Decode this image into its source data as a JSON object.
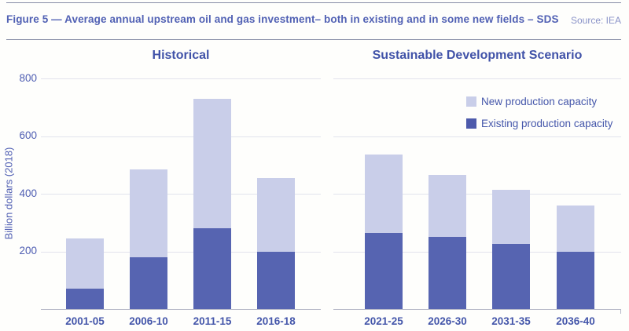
{
  "header": {
    "title": "Figure 5 — Average annual upstream oil and gas investment– both in existing and in some new fields – SDS",
    "source": "Source: IEA"
  },
  "y_axis": {
    "label": "Billion dollars (2018)",
    "ticks": [
      "800",
      "600",
      "400",
      "200"
    ]
  },
  "legend": [
    {
      "label": "New production capacity",
      "color": "#c9cee9"
    },
    {
      "label": "Existing production capacity",
      "color": "#4d5aab"
    }
  ],
  "colors": {
    "new_bar": "#c9cee9",
    "existing_bar": "#5664b1",
    "text_blue": "#4e5db2",
    "gridline": "#e2e3ec",
    "axis_line": "#b4b7c6"
  },
  "chart_data": [
    {
      "type": "bar",
      "stacked": true,
      "title": "Historical",
      "categories": [
        "2001-05",
        "2006-10",
        "2011-15",
        "2016-18"
      ],
      "series": [
        {
          "key": "existing",
          "name": "Existing production capacity",
          "values": [
            70,
            180,
            280,
            200
          ]
        },
        {
          "key": "new",
          "name": "New production capacity",
          "values": [
            175,
            305,
            450,
            255
          ]
        }
      ],
      "totals": [
        245,
        485,
        730,
        455
      ],
      "xlabel": "",
      "ylabel": "Billion dollars (2018)",
      "ylim": [
        0,
        800
      ],
      "gridlines": [
        200,
        400,
        600,
        800
      ],
      "legend_position": "top-right-of-second-panel"
    },
    {
      "type": "bar",
      "stacked": true,
      "title": "Sustainable Development Scenario",
      "categories": [
        "2021-25",
        "2026-30",
        "2031-35",
        "2036-40"
      ],
      "series": [
        {
          "key": "existing",
          "name": "Existing production capacity",
          "values": [
            265,
            250,
            225,
            200
          ]
        },
        {
          "key": "new",
          "name": "New production capacity",
          "values": [
            270,
            215,
            190,
            160
          ]
        }
      ],
      "totals": [
        535,
        465,
        415,
        360
      ],
      "xlabel": "",
      "ylabel": "Billion dollars (2018)",
      "ylim": [
        0,
        800
      ],
      "gridlines": [
        200,
        400,
        600,
        800
      ]
    }
  ]
}
